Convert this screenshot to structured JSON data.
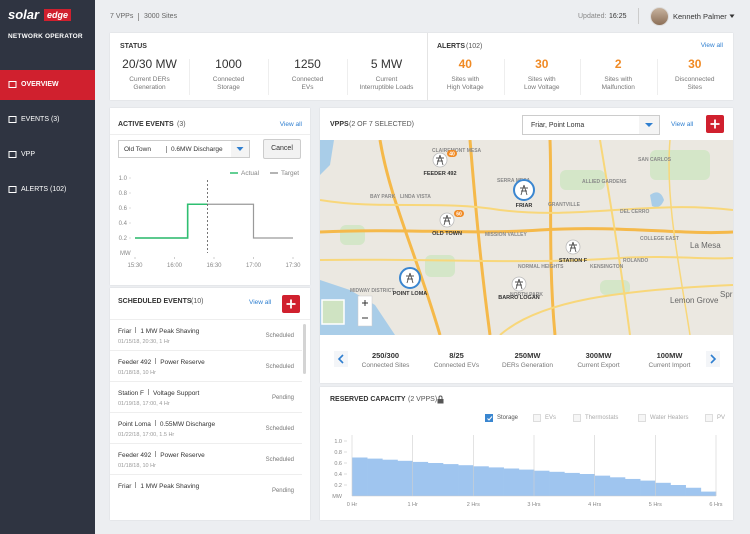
{
  "header": {
    "vpps": "7 VPPs",
    "sites": "3000 Sites",
    "updated_label": "Updated:",
    "updated_time": "16:25",
    "user": "Kenneth Palmer"
  },
  "sidebar": {
    "brand": "solar",
    "brand_accent": "edge",
    "subtitle": "NETWORK OPERATOR",
    "nav": [
      {
        "label": "OVERVIEW",
        "active": true
      },
      {
        "label": "EVENTS (3)"
      },
      {
        "label": "VPP"
      },
      {
        "label": "ALERTS (102)"
      }
    ]
  },
  "status": {
    "title": "STATUS",
    "items": [
      {
        "value": "20/30 MW",
        "label": [
          "Current DERs",
          "Generation"
        ]
      },
      {
        "value": "1000",
        "label": [
          "Connected",
          "Storage"
        ]
      },
      {
        "value": "1250",
        "label": [
          "Connected",
          "EVs"
        ]
      },
      {
        "value": "5 MW",
        "label": [
          "Current",
          "Interruptible Loads"
        ]
      }
    ]
  },
  "alerts": {
    "title": "ALERTS",
    "count": "(102)",
    "view_all": "View all",
    "items": [
      {
        "value": "40",
        "label": [
          "Sites with",
          "High Voltage"
        ]
      },
      {
        "value": "30",
        "label": [
          "Sites with",
          "Low Voltage"
        ]
      },
      {
        "value": "2",
        "label": [
          "Sites with",
          "Malfunction"
        ]
      },
      {
        "value": "30",
        "label": [
          "Disconnected",
          "Sites"
        ]
      }
    ]
  },
  "active_events": {
    "title": "ACTIVE EVENTS",
    "count": "(3)",
    "view_all": "View all",
    "select_site": "Old Town",
    "select_event": "0.6MW Discharge",
    "button": "Cancel"
  },
  "scheduled_events": {
    "title": "SCHEDULED EVENTS",
    "count": "(10)",
    "view_all": "View all",
    "items": [
      {
        "site": "Friar",
        "action": "1 MW Peak Shaving",
        "when": "01/15/18, 20:30, 1 Hr",
        "status": "Scheduled"
      },
      {
        "site": "Feeder 492",
        "action": "Power Reserve",
        "when": "01/18/18, 10 Hr",
        "status": "Scheduled"
      },
      {
        "site": "Station F",
        "action": "Voltage Support",
        "when": "01/19/18, 17:00, 4 Hr",
        "status": "Pending"
      },
      {
        "site": "Point Loma",
        "action": "0.55MW Discharge",
        "when": "01/22/18, 17:00, 1.5 Hr",
        "status": "Scheduled"
      },
      {
        "site": "Feeder 492",
        "action": "Power Reserve",
        "when": "01/18/18, 10 Hr",
        "status": "Scheduled"
      },
      {
        "site": "Friar",
        "action": "1 MW Peak Shaving",
        "status": "Pending"
      }
    ]
  },
  "vpps": {
    "title": "VPPS",
    "count": "(2 OF 7 SELECTED)",
    "select": "Friar, Point Loma",
    "view_all": "View all",
    "map": {
      "places": [
        "CLAIREMONT MESA",
        "SERRA MESA",
        "BAY PARK",
        "LINDA VISTA",
        "MISSION VALLEY",
        "GRANTVILLE",
        "ALLIED GARDENS",
        "SAN CARLOS",
        "DEL CERRO",
        "COLLEGE EAST",
        "La Mesa",
        "ROLANDO",
        "KENSINGTON",
        "NORMAL HEIGHTS",
        "NORTH PARK",
        "MIDWAY DISTRICT",
        "Lemon Grove",
        "Spring V"
      ],
      "nodes": [
        {
          "label": "FEEDER 492",
          "badge": 40
        },
        {
          "label": "FRIAR",
          "selected": true
        },
        {
          "label": "OLD TOWN",
          "badge": 60
        },
        {
          "label": "STATION F"
        },
        {
          "label": "POINT LOMA",
          "selected": true
        },
        {
          "label": "BARRO LOGAN"
        }
      ]
    },
    "stats": [
      {
        "value": "250/300",
        "label": "Connected Sites"
      },
      {
        "value": "8/25",
        "label": "Connected EVs"
      },
      {
        "value": "250MW",
        "label": "DERs Generation"
      },
      {
        "value": "300MW",
        "label": "Current Export"
      },
      {
        "value": "100MW",
        "label": "Current Import"
      }
    ]
  },
  "chart_data": [
    {
      "type": "line",
      "legend": "top-right",
      "ylabel": "MW",
      "series": [
        {
          "name": "Actual",
          "color": "#2fbf71",
          "x": [
            "15:30",
            "16:10",
            "16:10",
            "16:25"
          ],
          "values": [
            0.2,
            0.2,
            0.65,
            0.65
          ]
        },
        {
          "name": "Target",
          "color": "#9a9a9a",
          "x": [
            "15:30",
            "16:10",
            "16:10",
            "17:00",
            "17:00",
            "17:30"
          ],
          "values": [
            0.2,
            0.2,
            0.65,
            0.65,
            0.2,
            0.2
          ]
        }
      ],
      "xlim": [
        "15:30",
        "17:30"
      ],
      "xticks": [
        "15:30",
        "16:00",
        "16:30",
        "17:00",
        "17:30"
      ],
      "ylim": [
        0,
        1
      ],
      "yticks": [
        {
          "value": 1,
          "label": "1.0"
        },
        0.8,
        0.6,
        0.4,
        0.2
      ]
    },
    {
      "type": "histogram",
      "title": "RESERVED CAPACITY",
      "subtitle": "(2 VPPS)",
      "ylabel": "MW",
      "color": "#9fc5ef",
      "grid": "x",
      "legend": [
        {
          "name": "Storage",
          "checked": true
        },
        {
          "name": "EVs"
        },
        {
          "name": "Thermostats"
        },
        {
          "name": "Water Heaters"
        },
        {
          "name": "PV"
        }
      ],
      "bins": [
        0,
        0.25,
        0.5,
        0.75,
        1,
        1.25,
        1.5,
        1.75,
        2,
        2.25,
        2.5,
        2.75,
        3,
        3.25,
        3.5,
        3.75,
        4,
        4.25,
        4.5,
        4.75,
        5,
        5.25,
        5.5,
        5.75,
        6
      ],
      "values": [
        0.7,
        0.68,
        0.66,
        0.64,
        0.62,
        0.6,
        0.58,
        0.56,
        0.54,
        0.52,
        0.5,
        0.48,
        0.46,
        0.44,
        0.42,
        0.4,
        0.37,
        0.34,
        0.31,
        0.28,
        0.24,
        0.2,
        0.15,
        0.08
      ],
      "xlim": [
        0,
        6
      ],
      "xticks": [
        {
          "value": 0,
          "label": "0 Hr"
        },
        {
          "value": 1,
          "label": "1 Hr"
        },
        {
          "value": 2,
          "label": "2 Hrs"
        },
        {
          "value": 3,
          "label": "3 Hrs"
        },
        {
          "value": 4,
          "label": "4 Hrs"
        },
        {
          "value": 5,
          "label": "5 Hrs"
        },
        {
          "value": 6,
          "label": "6 Hrs"
        }
      ],
      "ylim": [
        0,
        1
      ],
      "yticks": [
        {
          "value": 1,
          "label": "1.0"
        },
        0.8,
        0.6,
        0.4,
        0.2
      ]
    }
  ]
}
